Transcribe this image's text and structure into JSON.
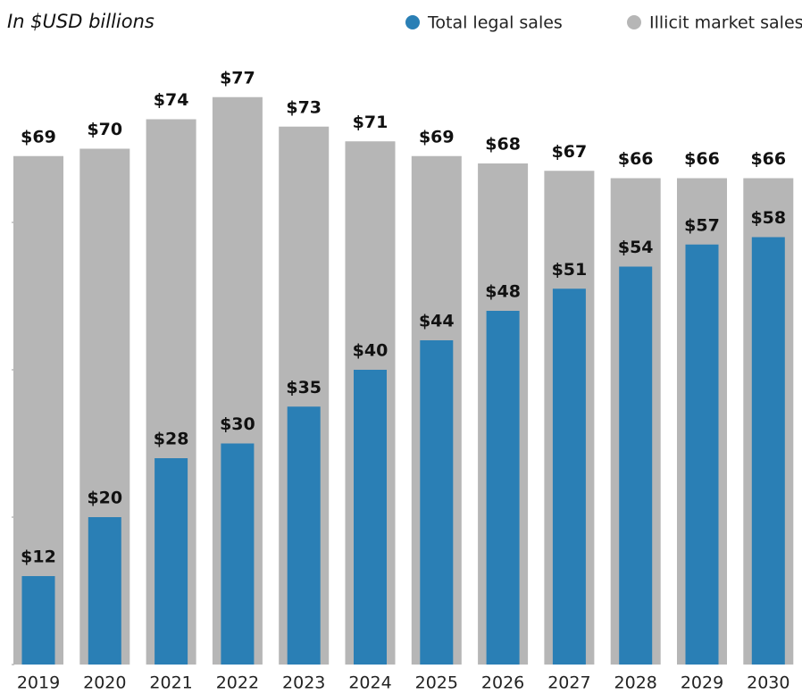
{
  "chart_data": {
    "type": "bar",
    "subtitle": "In $USD billions",
    "categories": [
      "2019",
      "2020",
      "2021",
      "2022",
      "2023",
      "2024",
      "2025",
      "2026",
      "2027",
      "2028",
      "2029",
      "2030"
    ],
    "series": [
      {
        "name": "Illicit market sales",
        "color": "#b6b6b6",
        "values": [
          69,
          70,
          74,
          77,
          73,
          71,
          69,
          68,
          67,
          66,
          66,
          66
        ],
        "value_labels": [
          "$69",
          "$70",
          "$74",
          "$77",
          "$73",
          "$71",
          "$69",
          "$68",
          "$67",
          "$66",
          "$66",
          "$66"
        ]
      },
      {
        "name": "Total legal sales",
        "color": "#2a7fb5",
        "values": [
          12,
          20,
          28,
          30,
          35,
          40,
          44,
          48,
          51,
          54,
          57,
          58
        ],
        "value_labels": [
          "$12",
          "$20",
          "$28",
          "$30",
          "$35",
          "$40",
          "$44",
          "$48",
          "$51",
          "$54",
          "$57",
          "$58"
        ]
      }
    ],
    "legend_order": [
      1,
      0
    ],
    "ylim": [
      0,
      80
    ],
    "yticks": [
      0,
      20,
      40,
      60
    ]
  }
}
